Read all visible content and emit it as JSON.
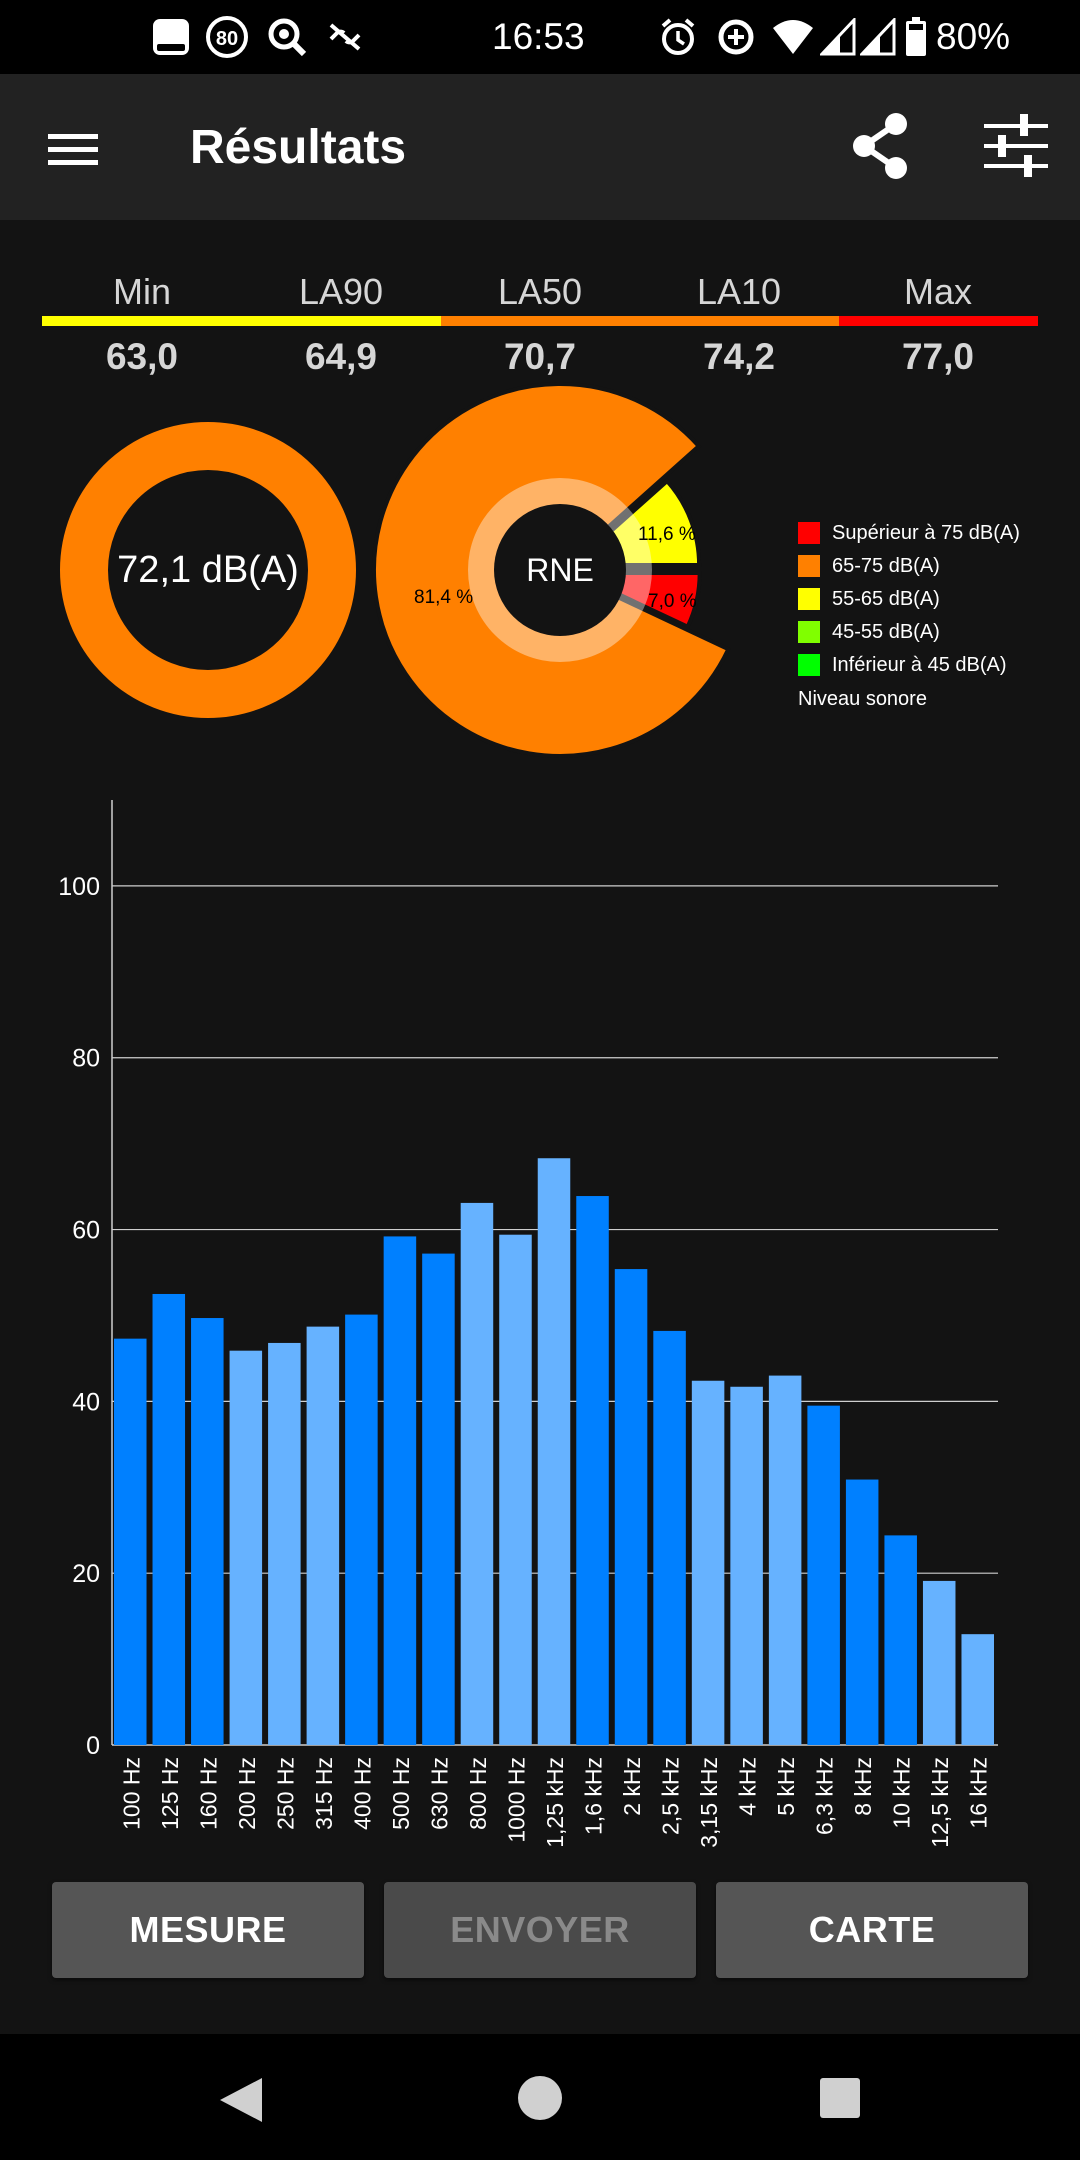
{
  "status_bar": {
    "time": "16:53",
    "battery_percent": "80%",
    "left_icons": [
      "notification-card-icon",
      "speed-limit-80-icon",
      "search-settings-icon",
      "link-off-icon"
    ],
    "right_icons": [
      "alarm-icon",
      "data-saver-icon",
      "wifi-icon",
      "signal-icon",
      "signal-icon",
      "battery-icon"
    ],
    "speed_badge": "80"
  },
  "app_bar": {
    "title": "Résultats",
    "menu_icon": "hamburger-menu-icon",
    "share_icon": "share-icon",
    "settings_icon": "sliders-icon"
  },
  "stats": [
    {
      "label": "Min",
      "value": "63,0"
    },
    {
      "label": "LA90",
      "value": "64,9"
    },
    {
      "label": "LA50",
      "value": "70,7"
    },
    {
      "label": "LA10",
      "value": "74,2"
    },
    {
      "label": "Max",
      "value": "77,0"
    }
  ],
  "level_colors": {
    "above_75": "#ff0000",
    "65_75": "#ff8000",
    "55_65": "#ffff00",
    "45_55": "#80ff00",
    "below_45": "#00ff00"
  },
  "leq": {
    "value": "72,1 dB(A)",
    "color": "#ff8000"
  },
  "rne": {
    "center_label": "RNE",
    "slices": [
      {
        "label": "81,4 %",
        "fraction": 0.814,
        "color": "#ff8000"
      },
      {
        "label": "11,6 %",
        "fraction": 0.116,
        "color": "#ffff00"
      },
      {
        "label": "7,0 %",
        "fraction": 0.07,
        "color": "#ff0000"
      }
    ]
  },
  "legend": {
    "items": [
      {
        "label": "Supérieur à 75 dB(A)",
        "color": "#ff0000"
      },
      {
        "label": "65-75 dB(A)",
        "color": "#ff8000"
      },
      {
        "label": "55-65 dB(A)",
        "color": "#ffff00"
      },
      {
        "label": "45-55 dB(A)",
        "color": "#80ff00"
      },
      {
        "label": "Inférieur à 45 dB(A)",
        "color": "#00ff00"
      }
    ],
    "title": "Niveau sonore"
  },
  "chart_data": {
    "type": "bar",
    "categories": [
      "100 Hz",
      "125 Hz",
      "160 Hz",
      "200 Hz",
      "250 Hz",
      "315 Hz",
      "400 Hz",
      "500 Hz",
      "630 Hz",
      "800 Hz",
      "1000 Hz",
      "1,25 kHz",
      "1,6 kHz",
      "2 kHz",
      "2,5 kHz",
      "3,15 kHz",
      "4 kHz",
      "5 kHz",
      "6,3 kHz",
      "8 kHz",
      "10 kHz",
      "12,5 kHz",
      "16 kHz"
    ],
    "values": [
      47.3,
      52.5,
      49.7,
      45.9,
      46.8,
      48.7,
      50.1,
      59.2,
      57.2,
      63.1,
      59.4,
      68.3,
      63.9,
      55.4,
      48.2,
      42.4,
      41.7,
      43.0,
      39.5,
      30.9,
      24.4,
      19.1,
      12.9
    ],
    "ylim": [
      0,
      110
    ],
    "yticks": [
      "0",
      "20",
      "40",
      "60",
      "80",
      "100"
    ],
    "grid": true,
    "colors": {
      "dark": "#0080ff",
      "light": "#66b2ff"
    },
    "bar_color_groups": [
      "dark",
      "dark",
      "dark",
      "light",
      "light",
      "light",
      "dark",
      "dark",
      "dark",
      "light",
      "light",
      "light",
      "dark",
      "dark",
      "dark",
      "light",
      "light",
      "light",
      "dark",
      "dark",
      "dark",
      "light",
      "light"
    ]
  },
  "buttons": {
    "mesure": "MESURE",
    "envoyer": "ENVOYER",
    "carte": "CARTE"
  },
  "nav_bar": {
    "back_icon": "back-triangle-icon",
    "home_icon": "home-circle-icon",
    "recents_icon": "recents-square-icon"
  }
}
